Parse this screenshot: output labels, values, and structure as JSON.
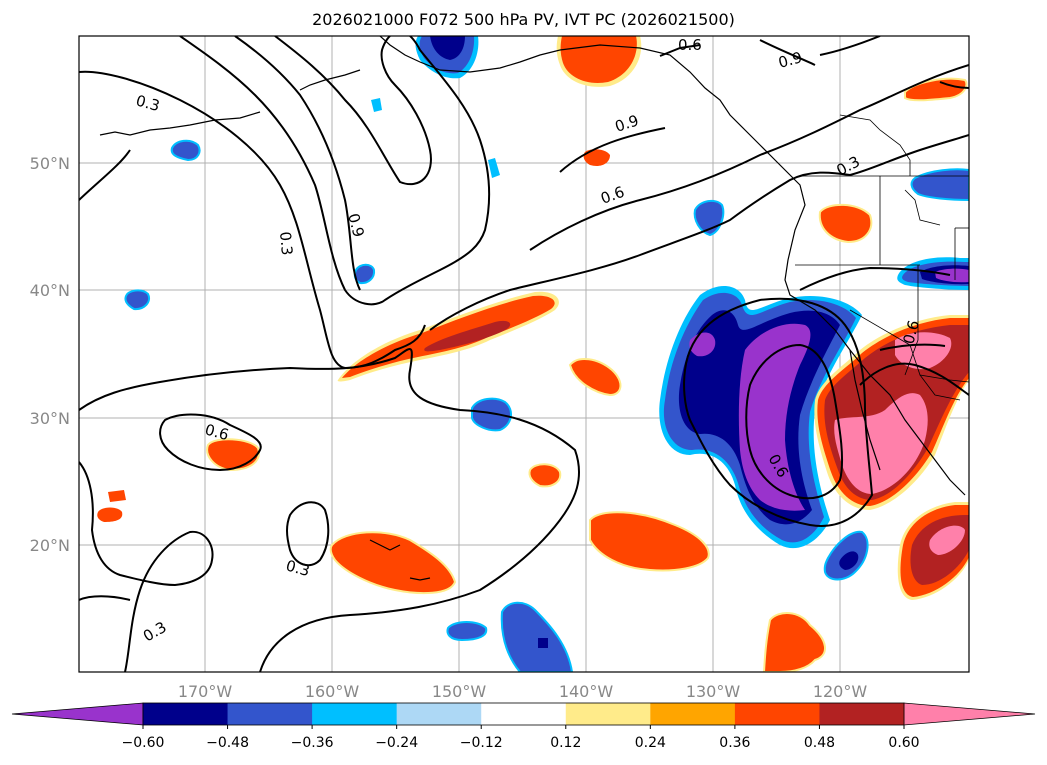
{
  "title": "2026021000 F072 500 hPa PV, IVT PC (2026021500)",
  "map": {
    "lon_labels": [
      "170°W",
      "160°W",
      "150°W",
      "140°W",
      "130°W",
      "120°W"
    ],
    "lat_labels": [
      "50°N",
      "40°N",
      "30°N",
      "20°N"
    ],
    "contour_labels": [
      "0.3",
      "0.3",
      "0.3",
      "0.3",
      "0.3",
      "0.6",
      "0.6",
      "0.6",
      "0.6",
      "0.6",
      "0.9",
      "0.9",
      "0.9"
    ]
  },
  "colorbar": {
    "colors": [
      "#9933cc",
      "#00008b",
      "#3355cc",
      "#00bfff",
      "#add8f5",
      "#ffffff",
      "#ffeb8a",
      "#ffa500",
      "#ff4500",
      "#b22222",
      "#ff80aa"
    ],
    "extend_colors": {
      "min": "#9933cc",
      "max": "#ff80aa"
    },
    "ticks": [
      "−0.60",
      "−0.48",
      "−0.36",
      "−0.24",
      "−0.12",
      "0.12",
      "0.24",
      "0.36",
      "0.48",
      "0.60"
    ]
  }
}
